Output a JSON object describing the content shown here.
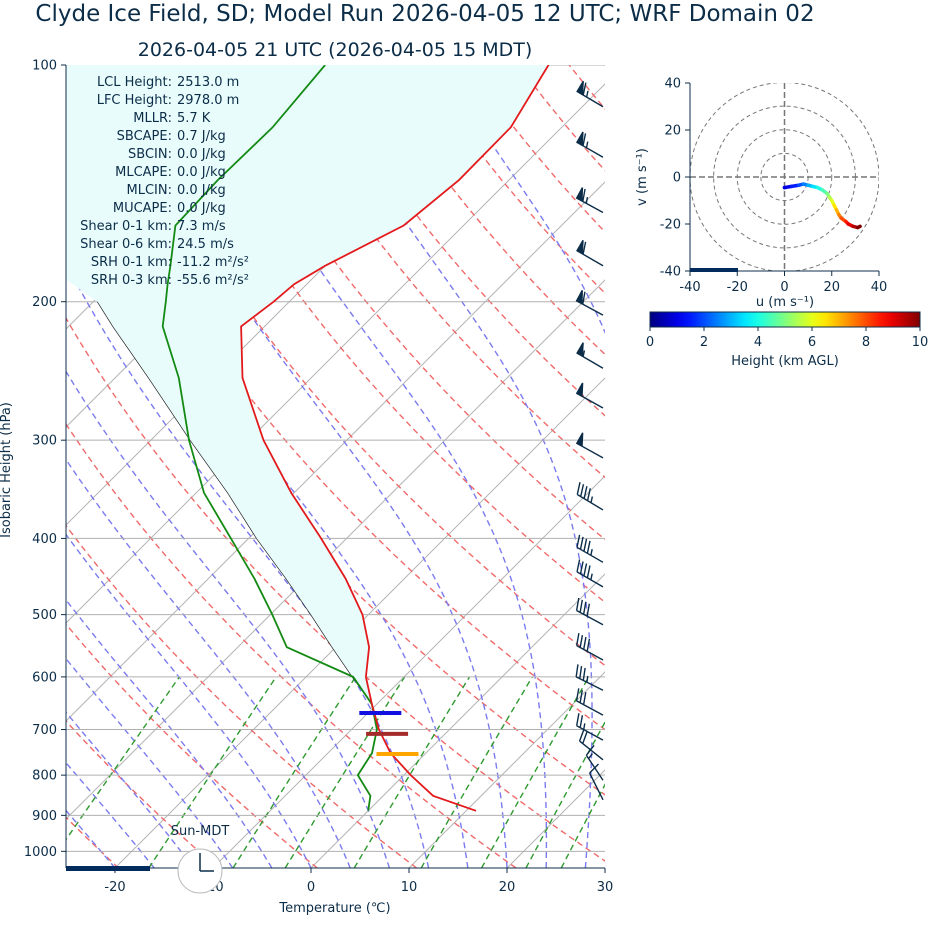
{
  "chart_data": [
    {
      "type": "skewt",
      "title": "Clyde Ice Field, SD; Model Run 2026-04-05 12 UTC; WRF Domain 02",
      "subtitle": "2026-04-05 21 UTC  (2026-04-05 15 MDT)",
      "xlabel": "Temperature (℃)",
      "ylabel": "Isobaric Height (hPa)",
      "xlim": [
        -25,
        30
      ],
      "xticks": [
        -20,
        -10,
        0,
        10,
        20,
        30
      ],
      "ylim": [
        1050,
        100
      ],
      "yticks": [
        100,
        200,
        300,
        400,
        500,
        600,
        700,
        800,
        900,
        1000
      ],
      "log_y": true,
      "grid": true,
      "pressure": [
        888,
        850,
        800,
        750,
        700,
        650,
        600,
        550,
        500,
        450,
        400,
        350,
        300,
        250,
        215,
        200,
        190,
        180,
        160,
        140,
        120,
        100
      ],
      "temperature": [
        11.0,
        5.1,
        0.7,
        -3.6,
        -7.2,
        -10.5,
        -13.9,
        -16.6,
        -20.6,
        -26.0,
        -32.6,
        -40.3,
        -48.5,
        -57.0,
        -62.4,
        -61.6,
        -61.3,
        -60.0,
        -56.1,
        -55.1,
        -55.2,
        -57.7
      ],
      "dewpoint": [
        0.0,
        -1.3,
        -4.7,
        -5.5,
        -7.4,
        -10.5,
        -15.2,
        -25.0,
        -29.8,
        -35.3,
        -41.8,
        -49.2,
        -56.1,
        -63.5,
        -70.4,
        -72.6,
        -74.2,
        -75.8,
        -79.4,
        -79.7,
        -79.5,
        -80.5
      ],
      "parcel": [
        11.0,
        5.1,
        0.7,
        -3.6,
        -7.2,
        -10.5,
        -15.3,
        -20.4,
        -25.9,
        -32.1,
        -39.2,
        -46.8,
        -56.0,
        -66.6,
        -75.5,
        -79.6,
        null,
        null,
        null,
        null,
        null,
        null
      ],
      "colors": {
        "temperature": "#e31a1c",
        "dewpoint": "#138a13",
        "parcel": "#222222",
        "area": "#e8fcfc"
      },
      "level_markers": [
        {
          "pressure": 667,
          "color": "#1010e0"
        },
        {
          "pressure": 709,
          "color": "#a52a2a"
        },
        {
          "pressure": 752,
          "color": "#ffa500"
        }
      ],
      "winds": {
        "pressure": [
          113,
          131,
          154,
          180,
          208,
          243,
          273,
          316,
          368,
          429,
          461,
          515,
          571,
          624,
          671,
          722,
          765,
          812,
          860
        ],
        "u": [
          56,
          56,
          55,
          52,
          52,
          48,
          45,
          43,
          40,
          38,
          38,
          37,
          33,
          30,
          26,
          22,
          15,
          8,
          5
        ],
        "v": [
          -33,
          -32,
          -30,
          -30,
          -28,
          -28,
          -25,
          -24,
          -24,
          -22,
          -22,
          -20,
          -18,
          -15,
          -14,
          -12,
          -12,
          -12,
          -10
        ],
        "color": "#0c2d48"
      },
      "stats": [
        {
          "label": "LCL Height:",
          "value": "2513.0 m"
        },
        {
          "label": "LFC Height:",
          "value": "2978.0 m"
        },
        {
          "label": "MLLR:",
          "value": "5.7 K"
        },
        {
          "label": "SBCAPE:",
          "value": "0.7 J/kg"
        },
        {
          "label": "SBCIN:",
          "value": "0.0 J/kg"
        },
        {
          "label": "MLCAPE:",
          "value": "0.0 J/kg"
        },
        {
          "label": "MLCIN:",
          "value": "0.0 J/kg"
        },
        {
          "label": "MUCAPE:",
          "value": "0.0 J/kg"
        },
        {
          "label": "Shear 0-1 km:",
          "value": "7.3 m/s"
        },
        {
          "label": "Shear 0-6 km:",
          "value": "24.5 m/s"
        },
        {
          "label": "SRH 0-1 km:",
          "value": "-11.2 m²/s²"
        },
        {
          "label": "SRH 0-3 km:",
          "value": "-55.6 m²/s²"
        }
      ],
      "annotation": "Sun-MDT"
    },
    {
      "type": "hodograph",
      "xlabel": "u (m s⁻¹)",
      "ylabel": "v (m s⁻¹)",
      "xlim": [
        -40,
        40
      ],
      "xticks": [
        -40,
        -20,
        0,
        20,
        40
      ],
      "ylim": [
        -40,
        40
      ],
      "yticks": [
        -40,
        -20,
        0,
        20,
        40
      ],
      "u": [
        0,
        3,
        6,
        8,
        10,
        12,
        14,
        16,
        18,
        19,
        20,
        21,
        22,
        23,
        24,
        26,
        27,
        29,
        31,
        32
      ],
      "v": [
        -4.5,
        -4,
        -3.5,
        -3,
        -3.5,
        -4,
        -4.5,
        -5.5,
        -7,
        -8.5,
        -10,
        -12,
        -14,
        -16,
        -17.5,
        -19,
        -20,
        -21,
        -21.5,
        -21
      ],
      "height": [
        0.2,
        1,
        1.5,
        2,
        2.5,
        3,
        3.5,
        4,
        4.5,
        5,
        5.5,
        6,
        6.5,
        7,
        7.5,
        8,
        8.5,
        9,
        9.5,
        10
      ],
      "colorbar": {
        "label": "Height (km AGL)",
        "lim": [
          0,
          10
        ],
        "ticks": [
          0,
          2,
          4,
          6,
          8,
          10
        ],
        "colormap": "jet"
      }
    }
  ]
}
